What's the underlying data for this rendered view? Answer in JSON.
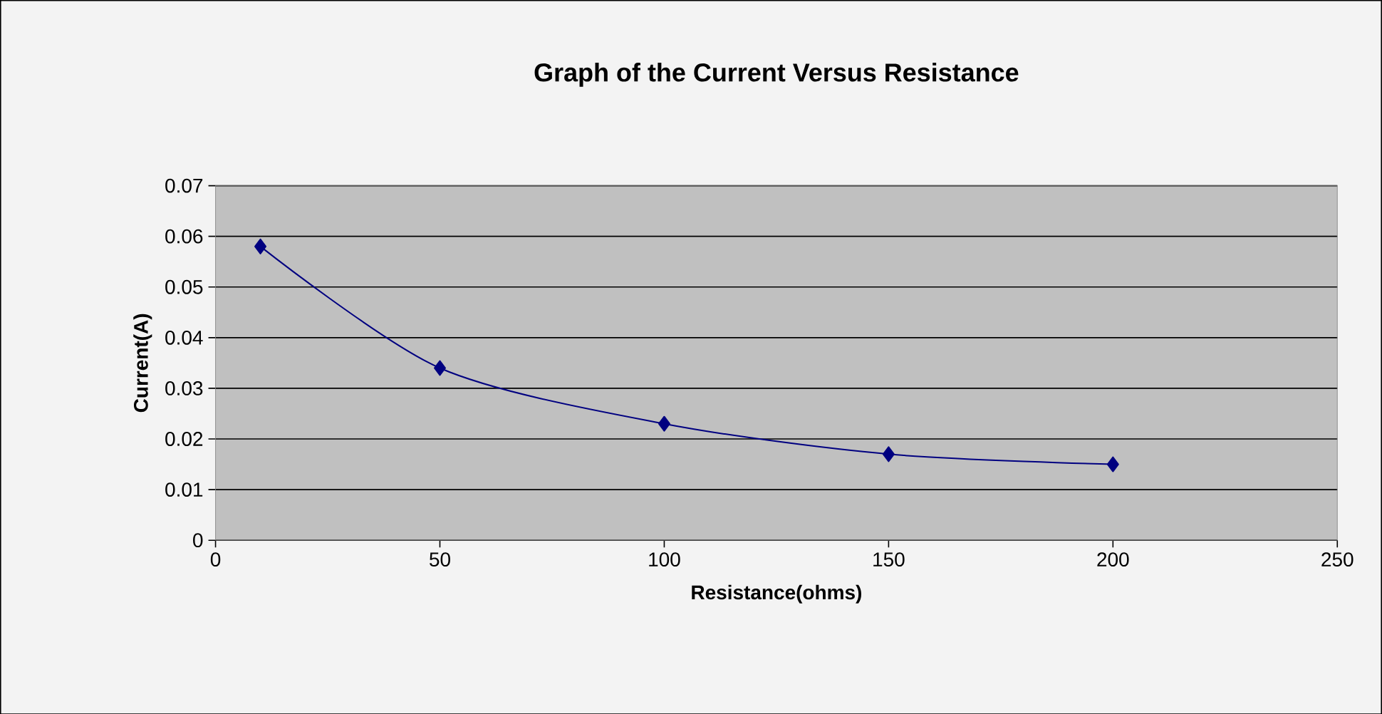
{
  "chart_data": {
    "type": "line",
    "title": "Graph of the Current Versus Resistance",
    "xlabel": "Resistance(ohms)",
    "ylabel": "Current(A)",
    "x": [
      10,
      50,
      100,
      150,
      200
    ],
    "series": [
      {
        "color": "#000080",
        "values": [
          0.058,
          0.034,
          0.023,
          0.017,
          0.015
        ]
      }
    ],
    "xlim": [
      0,
      250
    ],
    "xticks": [
      0,
      50,
      100,
      150,
      200,
      250
    ],
    "ylim": [
      0,
      0.07
    ],
    "yticks": [
      0,
      0.01,
      0.02,
      0.03,
      0.04,
      0.05,
      0.06,
      0.07
    ],
    "grid": "y",
    "marker": "diamond",
    "line_style": "solid"
  }
}
